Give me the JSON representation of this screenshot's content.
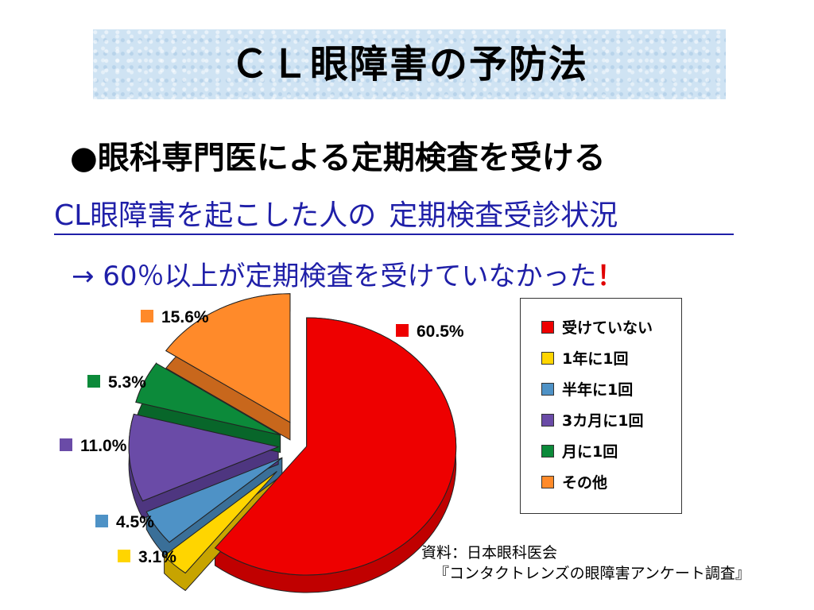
{
  "title": "ＣＬ眼障害の予防法",
  "subtitle": "●眼科専門医による定期検査を受ける",
  "heading": {
    "part1": "CL眼障害を起こした人の",
    "part2": "定期検査受診状況"
  },
  "note": {
    "text": "→ 60％以上が定期検査を受けていなかった",
    "emphasis": "！"
  },
  "chart_data": {
    "type": "pie",
    "style": "3d-exploded",
    "unit": "%",
    "slices": [
      {
        "label": "受けていない",
        "value": 60.5,
        "display": "60.5%",
        "color": "#ee0000",
        "side": "#c00000"
      },
      {
        "label": "1年に1回",
        "value": 3.1,
        "display": "3.1%",
        "color": "#ffd500",
        "side": "#c7a400"
      },
      {
        "label": "半年に1回",
        "value": 4.5,
        "display": "4.5%",
        "color": "#4e92c6",
        "side": "#3a6f98"
      },
      {
        "label": "3カ月に1回",
        "value": 11.0,
        "display": "11.0%",
        "color": "#6a4ba7",
        "side": "#4e3680"
      },
      {
        "label": "月に1回",
        "value": 5.3,
        "display": "5.3%",
        "color": "#0c8a3a",
        "side": "#08662a"
      },
      {
        "label": "その他",
        "value": 15.6,
        "display": "15.6%",
        "color": "#ff8a2a",
        "side": "#c8671c"
      }
    ],
    "legend_position": "right"
  },
  "source": {
    "line1": "資料：日本眼科医会",
    "line2": "『コンタクトレンズの眼障害アンケート調査』"
  }
}
